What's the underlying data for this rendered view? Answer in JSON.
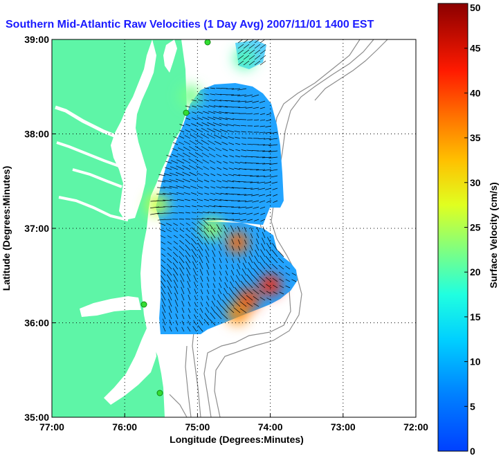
{
  "chart_data": {
    "type": "heatmap",
    "title": "Southern Mid-Atlantic Raw Velocities (1 Day Avg) 2007/11/01 1400 EST",
    "xlabel": "Longitude (Degrees:Minutes)",
    "ylabel": "Latitude (Degrees:Minutes)",
    "x_ticks": [
      {
        "value": -77,
        "label": "77:00"
      },
      {
        "value": -76,
        "label": "76:00"
      },
      {
        "value": -75,
        "label": "75:00"
      },
      {
        "value": -74,
        "label": "74:00"
      },
      {
        "value": -73,
        "label": "73:00"
      },
      {
        "value": -72,
        "label": "72:00"
      }
    ],
    "y_ticks": [
      {
        "value": 35,
        "label": "35:00"
      },
      {
        "value": 36,
        "label": "36:00"
      },
      {
        "value": 37,
        "label": "37:00"
      },
      {
        "value": 38,
        "label": "38:00"
      },
      {
        "value": 39,
        "label": "39:00"
      }
    ],
    "xlim": [
      -77,
      -72
    ],
    "ylim": [
      35,
      39
    ],
    "grid": true,
    "colorbar": {
      "label": "Surface Velocity (cm/s)",
      "range": [
        0,
        50
      ],
      "ticks": [
        0,
        5,
        10,
        15,
        20,
        25,
        30,
        35,
        40,
        45,
        50
      ],
      "colormap": "jet"
    },
    "hotspots": [
      {
        "lon": -74.45,
        "lat": 36.85,
        "speed": 38
      },
      {
        "lon": -74.0,
        "lat": 36.4,
        "speed": 42
      },
      {
        "lon": -74.3,
        "lat": 36.25,
        "speed": 40
      },
      {
        "lon": -74.45,
        "lat": 36.1,
        "speed": 36
      },
      {
        "lon": -74.8,
        "lat": 37.0,
        "speed": 24
      },
      {
        "lon": -75.1,
        "lat": 38.4,
        "speed": 22
      },
      {
        "lon": -75.55,
        "lat": 37.25,
        "speed": 26
      },
      {
        "lon": -74.35,
        "lat": 38.8,
        "speed": 20
      }
    ]
  },
  "colors": {
    "land": "#5ef5a7",
    "background": "#ffffff",
    "title": "#1a1aff",
    "grid": "#000000",
    "isobath": "#8c8c8c",
    "station": "#33dd33"
  }
}
